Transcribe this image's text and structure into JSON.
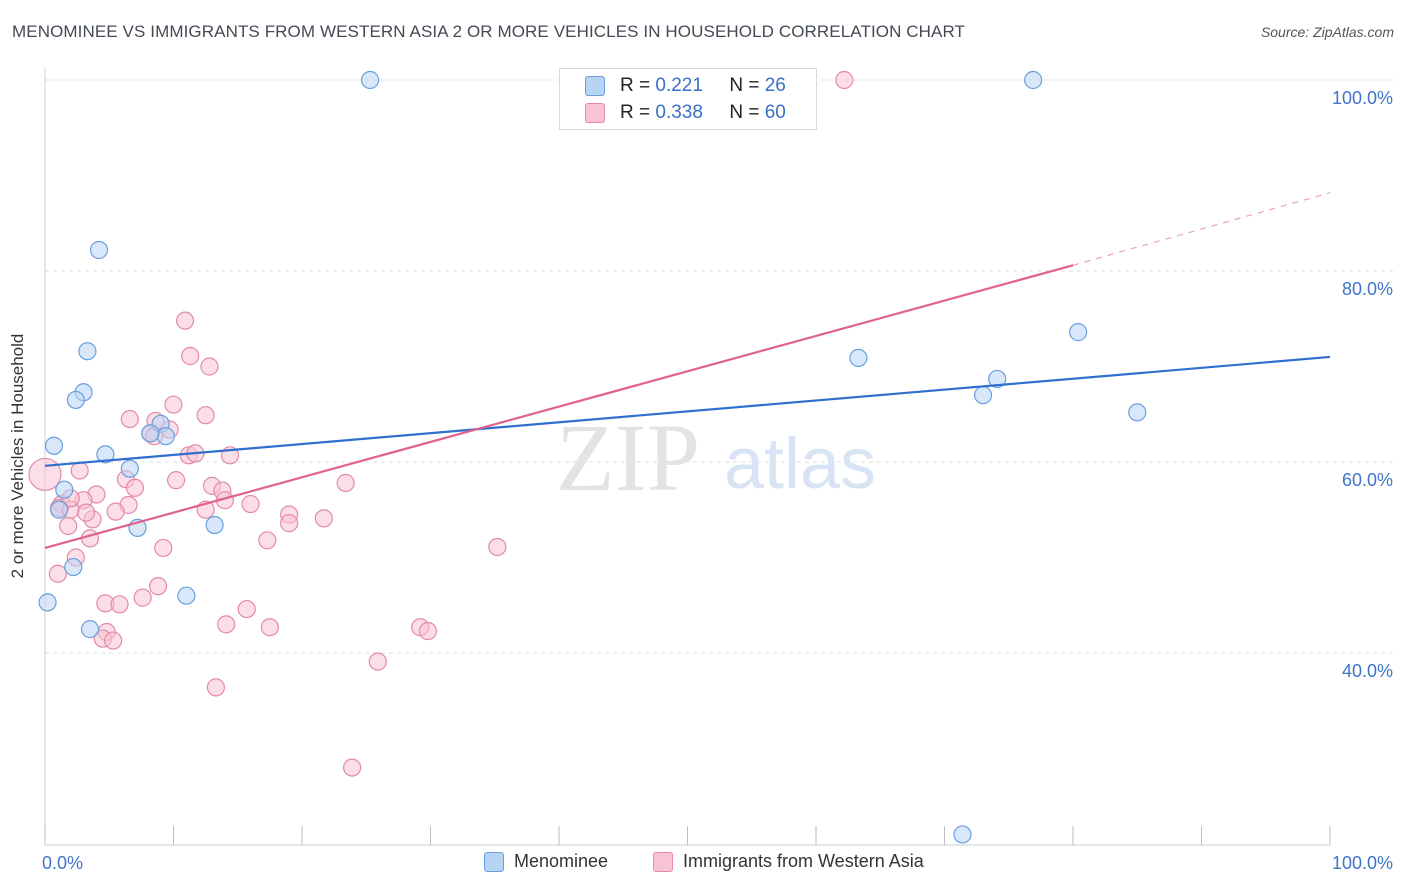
{
  "header": {
    "title": "MENOMINEE VS IMMIGRANTS FROM WESTERN ASIA 2 OR MORE VEHICLES IN HOUSEHOLD CORRELATION CHART",
    "source": "Source: ZipAtlas.com"
  },
  "watermark": {
    "zip": "ZIP",
    "atlas": "atlas"
  },
  "legend": {
    "r_label": "R =",
    "n_label": "N =",
    "series": [
      {
        "name": "Menominee",
        "r": "0.221",
        "n": "26",
        "fill": "#b8d4f5",
        "stroke": "#6a9fdc"
      },
      {
        "name": "Immigrants from Western Asia",
        "r": "0.338",
        "n": "60",
        "fill": "#f8c3d4",
        "stroke": "#e48aa8"
      }
    ]
  },
  "chart_data": {
    "type": "scatter",
    "title": "MENOMINEE VS IMMIGRANTS FROM WESTERN ASIA 2 OR MORE VEHICLES IN HOUSEHOLD CORRELATION CHART",
    "xlabel": "",
    "ylabel": "2 or more Vehicles in Household",
    "xlim": [
      0,
      100
    ],
    "ylim": [
      20,
      102
    ],
    "x_tick_labels": [
      "0.0%",
      "100.0%"
    ],
    "y_ticks": [
      40,
      60,
      80,
      100
    ],
    "y_tick_labels": [
      "40.0%",
      "60.0%",
      "80.0%",
      "100.0%"
    ],
    "grid": true,
    "series": [
      {
        "name": "Menominee",
        "color": "#6a9fdc",
        "fill": "#b8d4f5",
        "trend_color": "#2f6fce",
        "trend": {
          "x0": 0,
          "y0": 59.6,
          "x1": 100,
          "y1": 71.0
        },
        "points": [
          [
            25.3,
            100.0
          ],
          [
            76.9,
            100.0
          ],
          [
            4.2,
            82.2
          ],
          [
            3.3,
            71.6
          ],
          [
            3.0,
            67.3
          ],
          [
            2.4,
            66.5
          ],
          [
            0.7,
            61.7
          ],
          [
            4.7,
            60.8
          ],
          [
            6.6,
            59.3
          ],
          [
            9.0,
            64.0
          ],
          [
            9.4,
            62.7
          ],
          [
            1.5,
            57.1
          ],
          [
            1.1,
            55.0
          ],
          [
            7.2,
            53.1
          ],
          [
            13.2,
            53.4
          ],
          [
            2.2,
            49.0
          ],
          [
            11.0,
            46.0
          ],
          [
            0.2,
            45.3
          ],
          [
            3.5,
            42.5
          ],
          [
            63.3,
            70.9
          ],
          [
            80.4,
            73.6
          ],
          [
            74.1,
            68.7
          ],
          [
            73.0,
            67.0
          ],
          [
            85.0,
            65.2
          ],
          [
            71.4,
            21.0
          ],
          [
            8.2,
            63.0
          ]
        ]
      },
      {
        "name": "Immigrants from Western Asia",
        "color": "#e48aa8",
        "fill": "#f8c3d4",
        "trend_color": "#e0628a",
        "trend": {
          "x0": 0,
          "y0": 51.0,
          "x1": 80.0,
          "y1": 80.6
        },
        "trend_extension": {
          "x0": 80.0,
          "y0": 80.6,
          "x1": 100,
          "y1": 88.2
        },
        "points": [
          [
            62.2,
            100.0
          ],
          [
            10.9,
            74.8
          ],
          [
            11.3,
            71.1
          ],
          [
            12.8,
            70.0
          ],
          [
            10.0,
            66.0
          ],
          [
            12.5,
            64.9
          ],
          [
            6.6,
            64.5
          ],
          [
            8.6,
            64.3
          ],
          [
            8.2,
            63.0
          ],
          [
            8.5,
            62.7
          ],
          [
            11.2,
            60.7
          ],
          [
            11.7,
            60.9
          ],
          [
            14.4,
            60.7
          ],
          [
            2.7,
            59.1
          ],
          [
            0.0,
            58.7
          ],
          [
            6.3,
            58.2
          ],
          [
            10.2,
            58.1
          ],
          [
            23.4,
            57.8
          ],
          [
            13.0,
            57.5
          ],
          [
            7.0,
            57.3
          ],
          [
            13.8,
            57.0
          ],
          [
            4.0,
            56.6
          ],
          [
            3.0,
            56.0
          ],
          [
            14.0,
            56.0
          ],
          [
            16.0,
            55.6
          ],
          [
            1.3,
            55.6
          ],
          [
            6.5,
            55.5
          ],
          [
            1.1,
            55.2
          ],
          [
            2.0,
            55.0
          ],
          [
            5.5,
            54.8
          ],
          [
            12.5,
            55.0
          ],
          [
            19.0,
            54.5
          ],
          [
            3.7,
            54.0
          ],
          [
            21.7,
            54.1
          ],
          [
            19.0,
            53.6
          ],
          [
            1.8,
            53.3
          ],
          [
            3.5,
            52.0
          ],
          [
            17.3,
            51.8
          ],
          [
            35.2,
            51.1
          ],
          [
            9.2,
            51.0
          ],
          [
            2.4,
            50.0
          ],
          [
            1.0,
            48.3
          ],
          [
            8.8,
            47.0
          ],
          [
            7.6,
            45.8
          ],
          [
            4.7,
            45.2
          ],
          [
            5.8,
            45.1
          ],
          [
            15.7,
            44.6
          ],
          [
            14.1,
            43.0
          ],
          [
            17.5,
            42.7
          ],
          [
            29.2,
            42.7
          ],
          [
            29.8,
            42.3
          ],
          [
            4.8,
            42.2
          ],
          [
            4.5,
            41.5
          ],
          [
            5.3,
            41.3
          ],
          [
            25.9,
            39.1
          ],
          [
            13.3,
            36.4
          ],
          [
            23.9,
            28.0
          ],
          [
            9.7,
            63.4
          ],
          [
            3.2,
            54.7
          ],
          [
            2.0,
            56.2
          ]
        ]
      }
    ]
  }
}
